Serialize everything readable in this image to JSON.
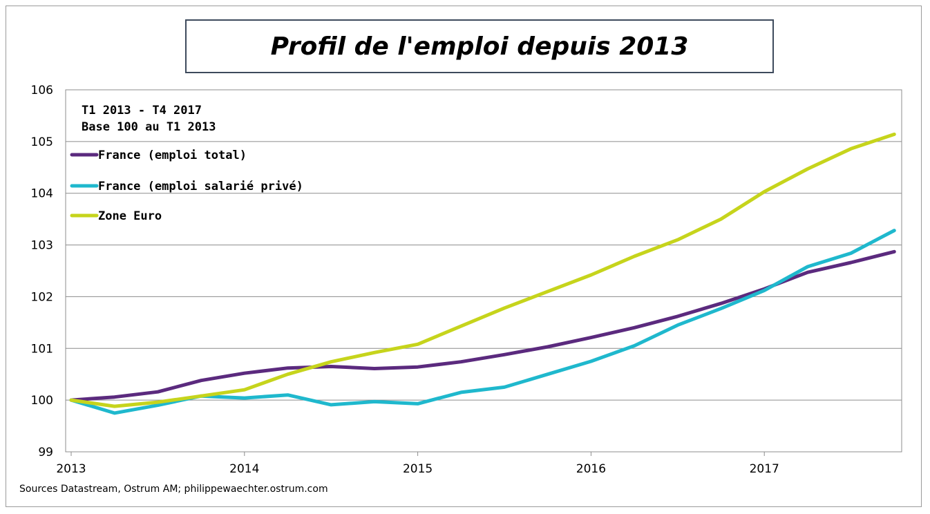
{
  "chart_data": {
    "type": "line",
    "title": "Profil de l'emploi depuis 2013",
    "notes": [
      "T1 2013 - T4 2017",
      "Base 100 au T1 2013"
    ],
    "source": "Sources Datastream, Ostrum AM; philippewaechter.ostrum.com",
    "xlabel": "",
    "ylabel": "",
    "x_tick_labels": [
      "2013",
      "2014",
      "2015",
      "2016",
      "2017"
    ],
    "x": [
      "T1 2013",
      "T2 2013",
      "T3 2013",
      "T4 2013",
      "T1 2014",
      "T2 2014",
      "T3 2014",
      "T4 2014",
      "T1 2015",
      "T2 2015",
      "T3 2015",
      "T4 2015",
      "T1 2016",
      "T2 2016",
      "T3 2016",
      "T4 2016",
      "T1 2017",
      "T2 2017",
      "T3 2017",
      "T4 2017"
    ],
    "ylim": [
      99,
      106
    ],
    "y_ticks": [
      99,
      100,
      101,
      102,
      103,
      104,
      105,
      106
    ],
    "grid": true,
    "legend_position": "top-left",
    "series": [
      {
        "name": "France (emploi total)",
        "color": "#5b2a7e",
        "values": [
          100.0,
          100.06,
          100.16,
          100.38,
          100.52,
          100.62,
          100.65,
          100.61,
          100.64,
          100.74,
          100.88,
          101.03,
          101.21,
          101.4,
          101.62,
          101.87,
          102.15,
          102.47,
          102.66,
          102.87
        ]
      },
      {
        "name": "France (emploi salarié privé)",
        "color": "#1fb8cd",
        "values": [
          100.0,
          99.75,
          99.9,
          100.08,
          100.04,
          100.1,
          99.91,
          99.97,
          99.93,
          100.15,
          100.25,
          100.5,
          100.75,
          101.05,
          101.45,
          101.77,
          102.12,
          102.58,
          102.84,
          103.28
        ]
      },
      {
        "name": "Zone Euro",
        "color": "#c6d41c",
        "values": [
          100.0,
          99.88,
          99.96,
          100.08,
          100.2,
          100.5,
          100.74,
          100.92,
          101.08,
          101.43,
          101.78,
          102.1,
          102.42,
          102.78,
          103.1,
          103.5,
          104.03,
          104.47,
          104.86,
          105.14
        ]
      }
    ]
  }
}
